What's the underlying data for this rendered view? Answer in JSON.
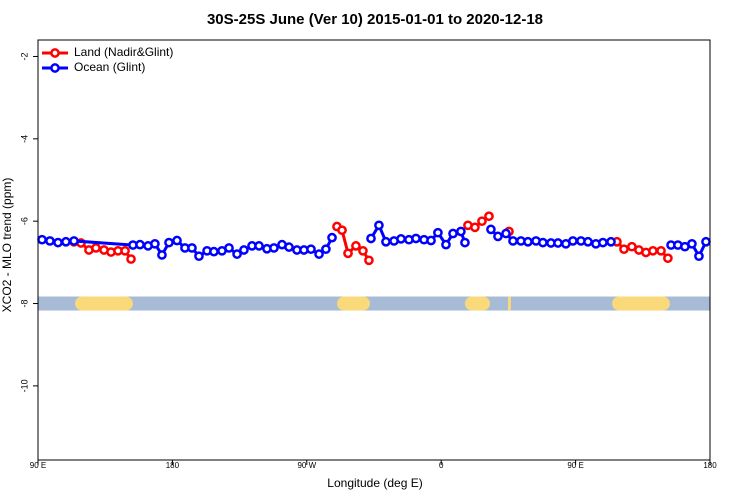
{
  "chart_data": {
    "type": "line",
    "title": "30S-25S June (Ver 10)   2015-01-01 to 2020-12-18",
    "xlabel": "Longitude (deg E)",
    "ylabel": "XCO2 - MLO trend (ppm)",
    "xlim": [
      90,
      540
    ],
    "xticks": [
      {
        "value": 90,
        "label": "90 E"
      },
      180,
      {
        "value": 270,
        "label": "90 W"
      },
      {
        "value": 360,
        "label": "0"
      },
      {
        "value": 450,
        "label": "90 E"
      },
      {
        "value": 540,
        "label": "180"
      }
    ],
    "ylim": [
      -11.8,
      -1.6
    ],
    "yticks": [
      -2,
      -4,
      -6,
      -8,
      -10
    ],
    "legend": "top-left",
    "strip": {
      "y": -8,
      "color": "#a7bad6",
      "land_color": "#f9d97a",
      "land": [
        [
          114.8,
          153.6
        ],
        [
          290.2,
          312.3
        ],
        [
          375.9,
          392.7
        ],
        [
          404.7,
          406.7
        ],
        [
          474.4,
          513.2
        ]
      ]
    },
    "series": [
      {
        "name": "Land (Nadir&Glint)",
        "color": "#ff0000",
        "x": [
          114.1,
          118.8,
          124.1,
          128.8,
          134.2,
          138.9,
          143.6,
          148.3,
          152.3,
          null,
          290.2,
          293.6,
          297.6,
          302.9,
          307.6,
          311.6,
          null,
          377.9,
          382.6,
          387.3,
          392.0,
          null,
          405.4,
          null,
          477.7,
          482.4,
          487.7,
          492.4,
          497.1,
          501.8,
          507.2,
          511.8
        ],
        "values": [
          -6.5,
          -6.53,
          -6.7,
          -6.65,
          -6.7,
          -6.75,
          -6.72,
          -6.72,
          -6.92,
          null,
          -6.13,
          -6.22,
          -6.78,
          -6.6,
          -6.72,
          -6.95,
          null,
          -6.1,
          -6.15,
          -6.0,
          -5.88,
          null,
          -6.25,
          null,
          -6.5,
          -6.68,
          -6.62,
          -6.7,
          -6.76,
          -6.72,
          -6.72,
          -6.9
        ]
      },
      {
        "name": "Ocean (Glint)",
        "color": "#0000ff",
        "x": [
          92.7,
          98.0,
          103.4,
          108.7,
          114.1,
          153.6,
          158.3,
          163.7,
          168.3,
          173.0,
          177.7,
          183.1,
          188.4,
          193.1,
          197.8,
          203.2,
          207.8,
          213.2,
          217.9,
          223.3,
          227.9,
          233.3,
          238.0,
          243.3,
          248.0,
          253.4,
          258.1,
          263.4,
          268.1,
          272.8,
          278.2,
          282.8,
          286.9,
          null,
          313.0,
          318.3,
          323.0,
          328.4,
          333.1,
          338.4,
          343.1,
          348.5,
          353.2,
          357.8,
          363.2,
          367.9,
          373.2,
          375.9,
          null,
          393.3,
          398.0,
          403.4,
          408.1,
          413.4,
          418.1,
          423.5,
          428.1,
          433.5,
          438.2,
          443.5,
          448.2,
          453.6,
          458.3,
          463.6,
          468.3,
          473.7,
          null,
          513.9,
          518.5,
          523.2,
          527.9,
          532.6,
          537.3
        ],
        "values": [
          -6.45,
          -6.48,
          -6.52,
          -6.5,
          -6.48,
          -6.58,
          -6.57,
          -6.6,
          -6.55,
          -6.82,
          -6.52,
          -6.47,
          -6.65,
          -6.65,
          -6.85,
          -6.72,
          -6.74,
          -6.72,
          -6.65,
          -6.8,
          -6.7,
          -6.6,
          -6.6,
          -6.67,
          -6.65,
          -6.57,
          -6.63,
          -6.7,
          -6.7,
          -6.68,
          -6.8,
          -6.68,
          -6.4,
          null,
          -6.42,
          -6.1,
          -6.5,
          -6.48,
          -6.43,
          -6.45,
          -6.42,
          -6.45,
          -6.47,
          -6.28,
          -6.57,
          -6.3,
          -6.25,
          -6.52,
          null,
          -6.2,
          -6.37,
          -6.3,
          -6.48,
          -6.48,
          -6.5,
          -6.48,
          -6.52,
          -6.53,
          -6.53,
          -6.55,
          -6.48,
          -6.48,
          -6.5,
          -6.55,
          -6.52,
          -6.5,
          null,
          -6.58,
          -6.58,
          -6.62,
          -6.55,
          -6.85,
          -6.5
        ]
      }
    ]
  }
}
